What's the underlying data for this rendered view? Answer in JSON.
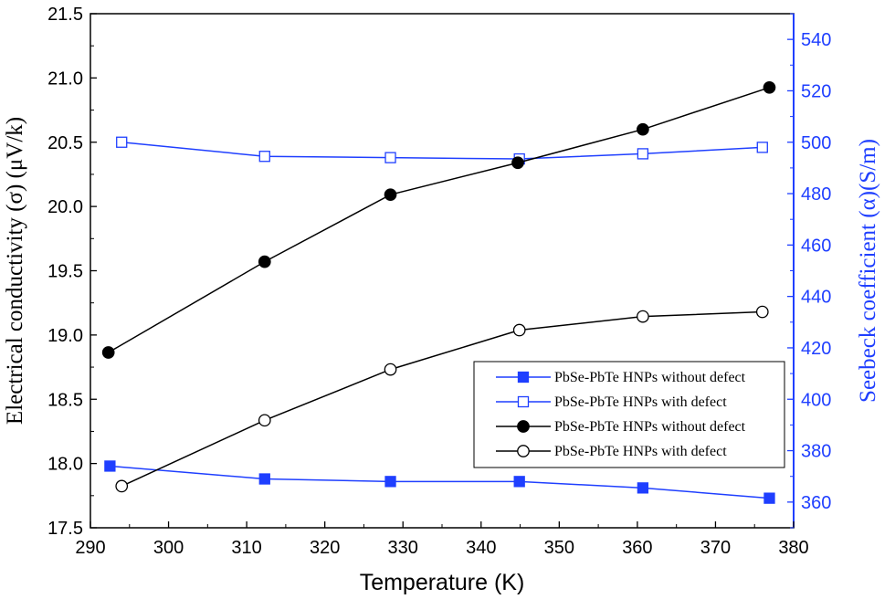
{
  "chart_data": {
    "type": "line",
    "xlabel": "Temperature (K)",
    "ylabel_left": "Electrical conductivity (σ) (μV/k)",
    "ylabel_right": "Seebeck coefficient (α)(S/m)",
    "xlim": [
      290,
      380
    ],
    "ylim_left": [
      17.5,
      21.5
    ],
    "ylim_right": [
      350,
      550
    ],
    "x_ticks": [
      "290",
      "300",
      "310",
      "320",
      "330",
      "340",
      "350",
      "360",
      "370",
      "380"
    ],
    "y_left_ticks": [
      "17.5",
      "18.0",
      "18.5",
      "19.0",
      "19.5",
      "20.0",
      "20.5",
      "21.0",
      "21.5"
    ],
    "y_right_ticks": [
      "360",
      "380",
      "400",
      "420",
      "440",
      "460",
      "480",
      "500",
      "520",
      "540"
    ],
    "legend_position": "lower-right",
    "series": [
      {
        "name": "PbSe-PbTe HNPs without defect",
        "axis": "left",
        "color": "#1f3fff",
        "marker": "square-filled",
        "x": [
          292.5,
          312.3,
          328.4,
          344.9,
          360.7,
          376.9
        ],
        "y": [
          17.98,
          17.88,
          17.86,
          17.86,
          17.81,
          17.73
        ]
      },
      {
        "name": "PbSe-PbTe HNPs with defect",
        "axis": "left",
        "color": "#1f3fff",
        "marker": "square-open",
        "x": [
          294.0,
          312.3,
          328.4,
          344.9,
          360.7,
          376.0
        ],
        "y": [
          20.5,
          20.39,
          20.38,
          20.37,
          20.41,
          20.46
        ]
      },
      {
        "name": "PbSe-PbTe HNPs without defect",
        "axis": "right",
        "color": "#000000",
        "marker": "circle-filled",
        "x": [
          292.3,
          312.3,
          328.4,
          344.7,
          360.7,
          376.9
        ],
        "y": [
          418.2,
          453.5,
          479.6,
          492.0,
          505.0,
          521.3
        ]
      },
      {
        "name": "PbSe-PbTe HNPs with defect",
        "axis": "right",
        "color": "#000000",
        "marker": "circle-open",
        "x": [
          294.0,
          312.3,
          328.4,
          344.9,
          360.7,
          376.0
        ],
        "y": [
          366.2,
          391.8,
          411.6,
          426.9,
          432.2,
          434.0
        ]
      }
    ]
  }
}
